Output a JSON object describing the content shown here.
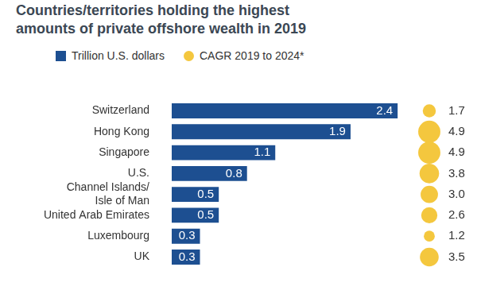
{
  "chart_data": {
    "type": "bar",
    "orientation": "horizontal",
    "title": "Countries/territories holding the highest amounts of private offshore wealth in 2019",
    "categories": [
      "Switzerland",
      "Hong Kong",
      "Singapore",
      "U.S.",
      "Channel Islands/ Isle of Man",
      "United Arab Emirates",
      "Luxembourg",
      "UK"
    ],
    "series": [
      {
        "name": "Trillion U.S. dollars",
        "color": "#1d4f91",
        "values": [
          2.4,
          1.9,
          1.1,
          0.8,
          0.5,
          0.5,
          0.3,
          0.3
        ]
      },
      {
        "name": "CAGR 2019 to 2024*",
        "type": "bubble",
        "marker": "circle",
        "color": "#f4c73e",
        "values": [
          1.7,
          4.9,
          4.9,
          3.8,
          3.0,
          2.6,
          1.2,
          3.5
        ],
        "value_labels": [
          "1.7",
          "4.9",
          "4.9",
          "3.8",
          "3.0",
          "2.6",
          "1.2",
          "3.5"
        ]
      }
    ],
    "data_labels": true,
    "legend": "top",
    "grid": false,
    "tick_labels": "y"
  }
}
